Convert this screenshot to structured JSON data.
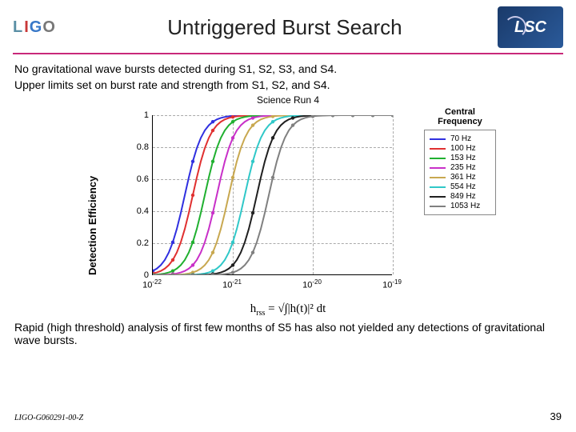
{
  "header": {
    "title": "Untriggered Burst Search",
    "lsc": "LSC"
  },
  "text": {
    "line1": "No gravitational wave bursts detected during S1, S2, S3, and S4.",
    "line2": "Upper limits set on burst rate and strength from S1, S2, and S4.",
    "subtitle": "Science Run 4",
    "ylabel": "Detection Efficiency",
    "legend_title": "Central Frequency",
    "line3": "Rapid (high threshold) analysis of first few months of S5 has also not yielded any detections of gravitational wave bursts.",
    "formula_lhs": "h",
    "formula_sub": "rss",
    "formula_rhs": " = √∫|h(t)|² dt"
  },
  "footer": {
    "doc_id": "LIGO-G060291-00-Z",
    "page": "39"
  },
  "chart": {
    "type": "line",
    "ylim": [
      0,
      1
    ],
    "yticks": [
      0,
      0.2,
      0.4,
      0.6,
      0.8,
      1
    ],
    "ytick_labels": [
      "0",
      "0.2",
      "0.4",
      "0.6",
      "0.8",
      "1"
    ],
    "xlog": true,
    "xlim_exp": [
      -22,
      -19
    ],
    "xtick_exp": [
      -22,
      -21,
      -20,
      -19
    ],
    "xtick_labels": [
      "10⁻²²",
      "10⁻²¹",
      "10⁻²⁰",
      "10⁻¹⁹"
    ],
    "background_color": "#ffffff",
    "grid_color": "#aaaaaa",
    "line_width": 2,
    "series": [
      {
        "label": "70 Hz",
        "color": "#3030e0",
        "mid_exp": -21.6
      },
      {
        "label": "100 Hz",
        "color": "#e03030",
        "mid_exp": -21.5
      },
      {
        "label": "153 Hz",
        "color": "#20b030",
        "mid_exp": -21.35
      },
      {
        "label": "235 Hz",
        "color": "#c830c8",
        "mid_exp": -21.2
      },
      {
        "label": "361 Hz",
        "color": "#c8a850",
        "mid_exp": -21.05
      },
      {
        "label": "554 Hz",
        "color": "#30c8c8",
        "mid_exp": -20.85
      },
      {
        "label": "849 Hz",
        "color": "#202020",
        "mid_exp": -20.7
      },
      {
        "label": "1053 Hz",
        "color": "#808080",
        "mid_exp": -20.55
      }
    ]
  }
}
